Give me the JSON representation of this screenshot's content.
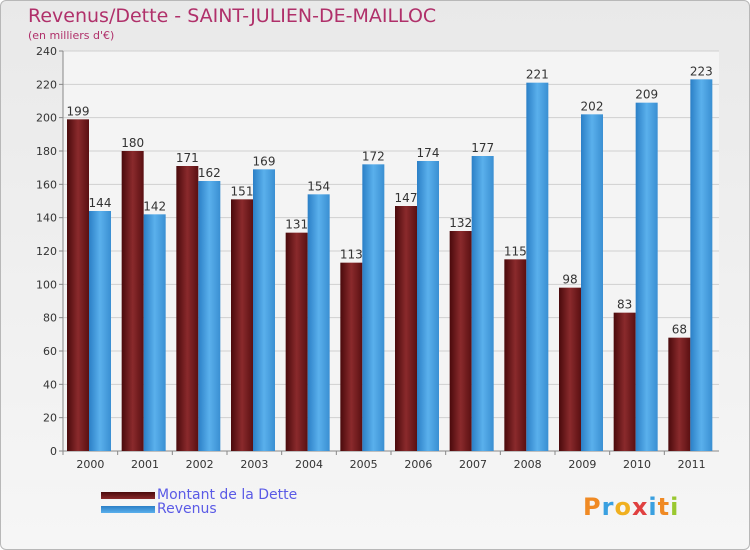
{
  "header": {
    "title": "Revenus/Dette - SAINT-JULIEN-DE-MAILLOC",
    "subtitle": "(en milliers d'€)"
  },
  "logo": {
    "text": "Proxiti"
  },
  "colors": {
    "title": "#b0306a",
    "dette": "#7a1a1c",
    "revenus": "#4aa2e2",
    "legend_text": "#5a5ae6"
  },
  "chart_data": {
    "type": "bar",
    "title": "Revenus/Dette - SAINT-JULIEN-DE-MAILLOC",
    "subtitle": "(en milliers d'€)",
    "xlabel": "",
    "ylabel": "",
    "categories": [
      "2000",
      "2001",
      "2002",
      "2003",
      "2004",
      "2005",
      "2006",
      "2007",
      "2008",
      "2009",
      "2010",
      "2011"
    ],
    "series": [
      {
        "name": "Montant de la Dette",
        "values": [
          199,
          180,
          171,
          151,
          131,
          113,
          147,
          132,
          115,
          98,
          83,
          68
        ]
      },
      {
        "name": "Revenus",
        "values": [
          144,
          142,
          162,
          169,
          154,
          172,
          174,
          177,
          221,
          202,
          209,
          223
        ]
      }
    ],
    "ylim": [
      0,
      240
    ],
    "yticks": [
      0,
      20,
      40,
      60,
      80,
      100,
      120,
      140,
      160,
      180,
      200,
      220,
      240
    ],
    "grid": true,
    "legend_position": "bottom-left"
  }
}
